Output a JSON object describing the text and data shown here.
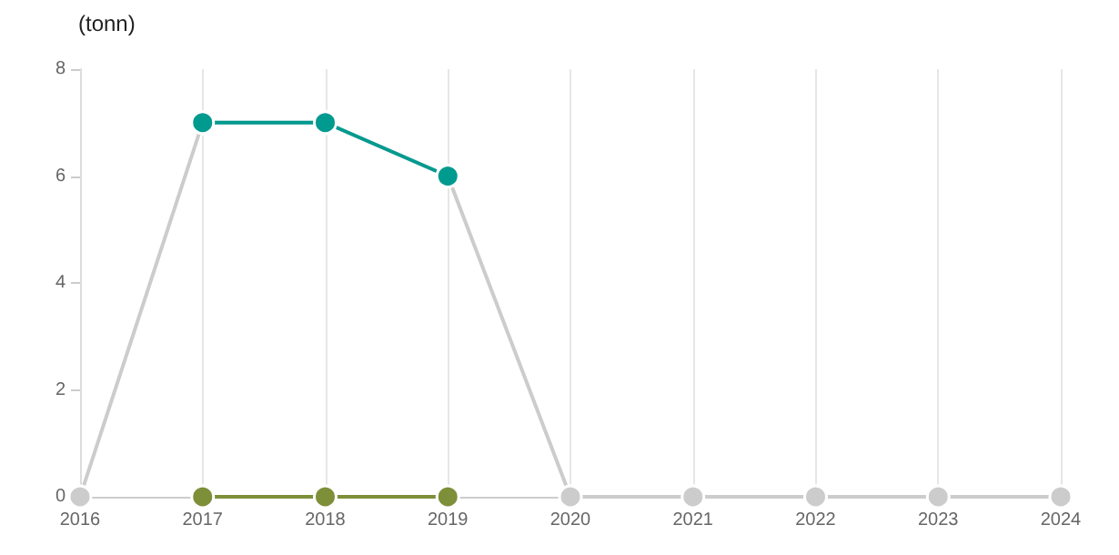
{
  "chart_data": {
    "type": "line",
    "ylabel": "(tonn)",
    "x": [
      2016,
      2017,
      2018,
      2019,
      2020,
      2021,
      2022,
      2023,
      2024
    ],
    "xlim": [
      2016,
      2024
    ],
    "xticks": [
      2016,
      2017,
      2018,
      2019,
      2020,
      2021,
      2022,
      2023,
      2024
    ],
    "ylim": [
      0,
      8
    ],
    "yticks": [
      0,
      2,
      4,
      6,
      8
    ],
    "grid": "x",
    "marker": "circle",
    "series": [
      {
        "color": "#cccccc",
        "values": [
          0,
          7,
          7,
          6,
          0,
          0,
          0,
          0,
          0
        ]
      },
      {
        "color": "#009a8f",
        "values": [
          null,
          7,
          7,
          6,
          null,
          null,
          null,
          null,
          null
        ]
      },
      {
        "color": "#7e8f3a",
        "values": [
          null,
          0,
          0,
          0,
          null,
          null,
          null,
          null,
          null
        ]
      }
    ]
  }
}
